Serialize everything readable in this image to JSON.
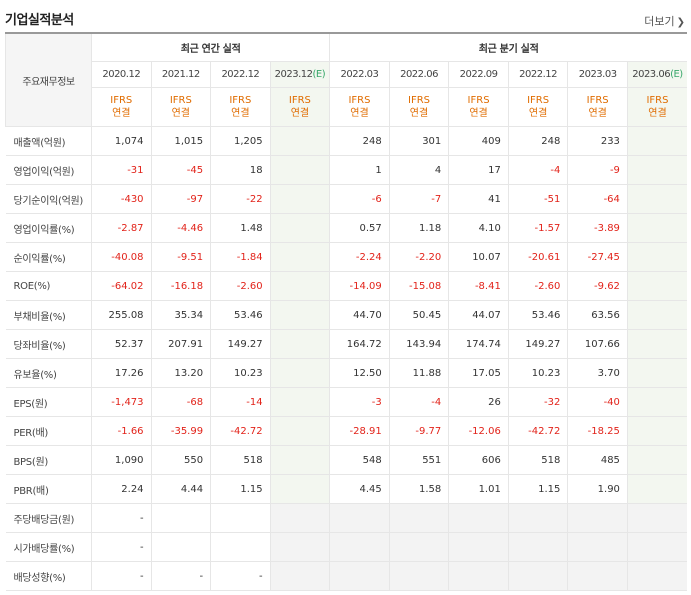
{
  "header": {
    "title": "기업실적분석",
    "more_label": "더보기"
  },
  "table": {
    "main_header": "주요재무정보",
    "annual_group": "최근 연간 실적",
    "quarter_group": "최근 분기 실적",
    "periods": [
      {
        "label": "2020.12",
        "est": ""
      },
      {
        "label": "2021.12",
        "est": ""
      },
      {
        "label": "2022.12",
        "est": ""
      },
      {
        "label": "2023.12",
        "est": "(E)"
      },
      {
        "label": "2022.03",
        "est": ""
      },
      {
        "label": "2022.06",
        "est": ""
      },
      {
        "label": "2022.09",
        "est": ""
      },
      {
        "label": "2022.12",
        "est": ""
      },
      {
        "label": "2023.03",
        "est": ""
      },
      {
        "label": "2023.06",
        "est": "(E)"
      }
    ],
    "standard_line1": "IFRS",
    "standard_line2": "연결",
    "rows": [
      {
        "label": "매출액(억원)",
        "values": [
          "1,074",
          "1,015",
          "1,205",
          "",
          "248",
          "301",
          "409",
          "248",
          "233",
          ""
        ]
      },
      {
        "label": "영업이익(억원)",
        "values": [
          "-31",
          "-45",
          "18",
          "",
          "1",
          "4",
          "17",
          "-4",
          "-9",
          ""
        ]
      },
      {
        "label": "당기순이익(억원)",
        "values": [
          "-430",
          "-97",
          "-22",
          "",
          "-6",
          "-7",
          "41",
          "-51",
          "-64",
          ""
        ]
      },
      {
        "label": "영업이익률(%)",
        "values": [
          "-2.87",
          "-4.46",
          "1.48",
          "",
          "0.57",
          "1.18",
          "4.10",
          "-1.57",
          "-3.89",
          ""
        ]
      },
      {
        "label": "순이익률(%)",
        "values": [
          "-40.08",
          "-9.51",
          "-1.84",
          "",
          "-2.24",
          "-2.20",
          "10.07",
          "-20.61",
          "-27.45",
          ""
        ]
      },
      {
        "label": "ROE(%)",
        "values": [
          "-64.02",
          "-16.18",
          "-2.60",
          "",
          "-14.09",
          "-15.08",
          "-8.41",
          "-2.60",
          "-9.62",
          ""
        ]
      },
      {
        "label": "부채비율(%)",
        "values": [
          "255.08",
          "35.34",
          "53.46",
          "",
          "44.70",
          "50.45",
          "44.07",
          "53.46",
          "63.56",
          ""
        ]
      },
      {
        "label": "당좌비율(%)",
        "values": [
          "52.37",
          "207.91",
          "149.27",
          "",
          "164.72",
          "143.94",
          "174.74",
          "149.27",
          "107.66",
          ""
        ]
      },
      {
        "label": "유보율(%)",
        "values": [
          "17.26",
          "13.20",
          "10.23",
          "",
          "12.50",
          "11.88",
          "17.05",
          "10.23",
          "3.70",
          ""
        ]
      },
      {
        "label": "EPS(원)",
        "values": [
          "-1,473",
          "-68",
          "-14",
          "",
          "-3",
          "-4",
          "26",
          "-32",
          "-40",
          ""
        ]
      },
      {
        "label": "PER(배)",
        "values": [
          "-1.66",
          "-35.99",
          "-42.72",
          "",
          "-28.91",
          "-9.77",
          "-12.06",
          "-42.72",
          "-18.25",
          ""
        ]
      },
      {
        "label": "BPS(원)",
        "values": [
          "1,090",
          "550",
          "518",
          "",
          "548",
          "551",
          "606",
          "518",
          "485",
          ""
        ]
      },
      {
        "label": "PBR(배)",
        "values": [
          "2.24",
          "4.44",
          "1.15",
          "",
          "4.45",
          "1.58",
          "1.01",
          "1.15",
          "1.90",
          ""
        ]
      },
      {
        "label": "주당배당금(원)",
        "values": [
          "-",
          "",
          "",
          "",
          "",
          "",
          "",
          "",
          "",
          ""
        ]
      },
      {
        "label": "시가배당률(%)",
        "values": [
          "-",
          "",
          "",
          "",
          "",
          "",
          "",
          "",
          "",
          ""
        ]
      },
      {
        "label": "배당성향(%)",
        "values": [
          "-",
          "-",
          "-",
          "",
          "",
          "",
          "",
          "",
          "",
          ""
        ]
      }
    ]
  }
}
